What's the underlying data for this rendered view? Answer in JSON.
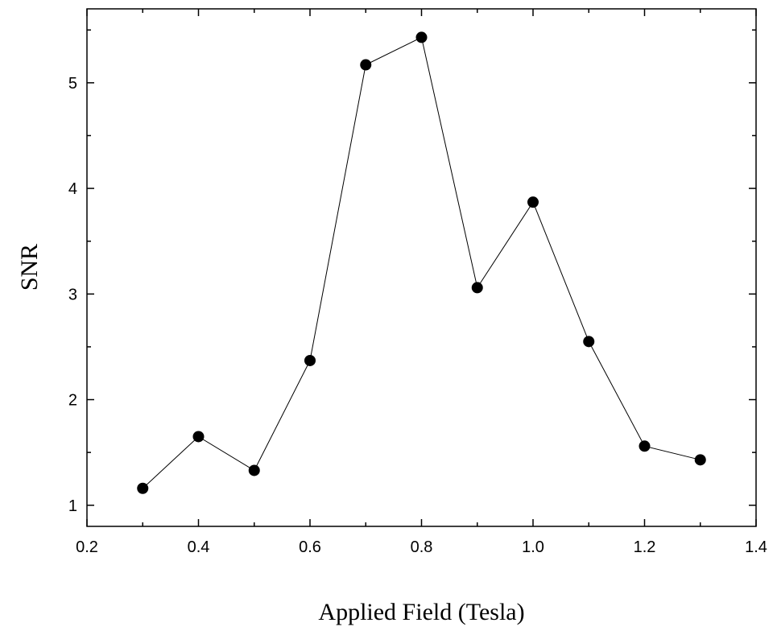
{
  "chart_data": {
    "type": "line",
    "title": "",
    "xlabel": "Applied Field (Tesla)",
    "ylabel": "SNR",
    "xlim": [
      0.2,
      1.4
    ],
    "ylim": [
      0.8,
      5.7
    ],
    "xticks": [
      0.2,
      0.4,
      0.6,
      0.8,
      1.0,
      1.2,
      1.4
    ],
    "xtick_labels": [
      "0.2",
      "0.4",
      "0.6",
      "0.8",
      "1.0",
      "1.2",
      "1.4"
    ],
    "yticks": [
      1,
      2,
      3,
      4,
      5
    ],
    "ytick_labels": [
      "1",
      "2",
      "3",
      "4",
      "5"
    ],
    "grid": false,
    "legend": "none",
    "series": [
      {
        "marker": "filled-circle",
        "color": "#000000",
        "x": [
          0.3,
          0.4,
          0.5,
          0.6,
          0.7,
          0.8,
          0.9,
          1.0,
          1.1,
          1.2,
          1.3
        ],
        "y": [
          1.16,
          1.65,
          1.33,
          2.37,
          5.17,
          5.43,
          3.06,
          3.87,
          2.55,
          1.56,
          1.43
        ]
      }
    ]
  }
}
